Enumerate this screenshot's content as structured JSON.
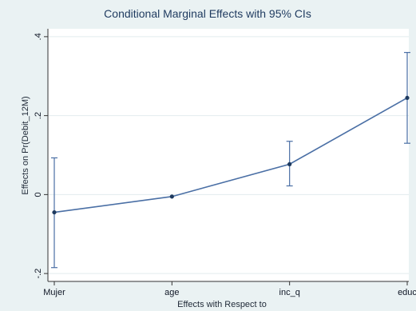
{
  "chart_data": {
    "type": "line",
    "title": "Conditional Marginal Effects with 95% CIs",
    "xlabel": "Effects with Respect to",
    "ylabel": "Effects on Pr(Debit_12M)",
    "categories": [
      "Mujer",
      "age",
      "inc_q",
      "educ"
    ],
    "series": [
      {
        "values": [
          -0.045,
          -0.005,
          0.077,
          0.245
        ],
        "ci_low": [
          -0.185,
          -0.005,
          0.022,
          0.13
        ],
        "ci_high": [
          0.093,
          -0.005,
          0.135,
          0.36
        ]
      }
    ],
    "ylim": [
      -0.22,
      0.42
    ],
    "yticks": [
      -0.2,
      0,
      0.2,
      0.4
    ],
    "ytick_labels": [
      "-.2",
      "0",
      ".2",
      ".4"
    ],
    "grid": true,
    "colors": {
      "background": "#eaf2f3",
      "plot_area": "#ffffff",
      "series": "#4a6fa5",
      "grid": "#e2ecee",
      "title": "#1e3a5f"
    }
  }
}
